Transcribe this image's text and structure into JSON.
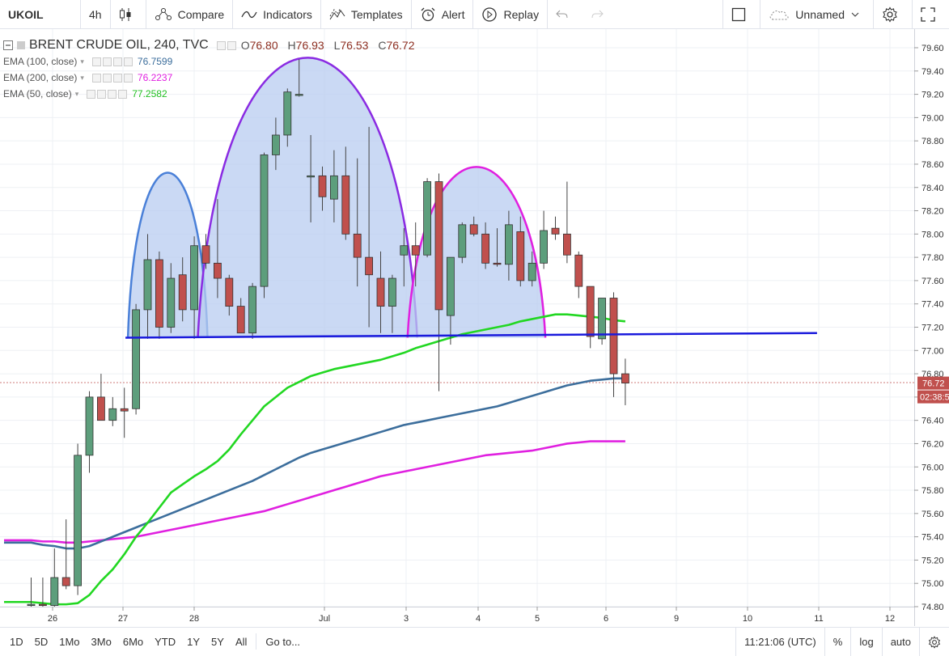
{
  "toolbar": {
    "symbol": "UKOIL",
    "interval": "4h",
    "compare": "Compare",
    "indicators": "Indicators",
    "templates": "Templates",
    "alert": "Alert",
    "replay": "Replay",
    "layout_name": "Unnamed"
  },
  "legend": {
    "title": "BRENT CRUDE OIL, 240, TVC",
    "ohlc": {
      "o_label": "O",
      "o": "76.80",
      "h_label": "H",
      "h": "76.93",
      "l_label": "L",
      "l": "76.53",
      "c_label": "C",
      "c": "76.72"
    },
    "ema100": {
      "label": "EMA (100, close)",
      "value": "76.7599",
      "color": "#3c6e9c"
    },
    "ema200": {
      "label": "EMA (200, close)",
      "value": "76.2237",
      "color": "#e020e0"
    },
    "ema50": {
      "label": "EMA (50, close)",
      "value": "77.2582",
      "color": "#22d722"
    }
  },
  "price_axis": {
    "ticks": [
      "79.60",
      "79.40",
      "79.20",
      "79.00",
      "78.80",
      "78.60",
      "78.40",
      "78.20",
      "78.00",
      "77.80",
      "77.60",
      "77.40",
      "77.20",
      "77.00",
      "76.80",
      "76.60",
      "76.40",
      "76.20",
      "76.00",
      "75.80",
      "75.60",
      "75.40",
      "75.20",
      "75.00",
      "74.80"
    ],
    "last_price": "76.72",
    "countdown": "02:38:5"
  },
  "time_axis": {
    "labels": [
      "26",
      "27",
      "28",
      "Jul",
      "3",
      "4",
      "5",
      "6",
      "9",
      "10",
      "11",
      "12"
    ]
  },
  "colors": {
    "up": "#5d9e7c",
    "down": "#c0504d",
    "neckline": "#1a1adc",
    "shape_fill": "#b8ccf0"
  },
  "chart_data": {
    "type": "candlestick",
    "symbol": "BRENT CRUDE OIL, 240, TVC",
    "ylim": [
      74.8,
      79.6
    ],
    "candles": [
      {
        "o": 74.82,
        "h": 75.05,
        "l": 74.8,
        "c": 74.82
      },
      {
        "o": 74.82,
        "h": 75.05,
        "l": 74.8,
        "c": 74.81
      },
      {
        "o": 74.81,
        "h": 75.3,
        "l": 74.8,
        "c": 75.05
      },
      {
        "o": 75.05,
        "h": 75.55,
        "l": 74.95,
        "c": 74.98
      },
      {
        "o": 74.98,
        "h": 76.2,
        "l": 74.9,
        "c": 76.1
      },
      {
        "o": 76.1,
        "h": 76.65,
        "l": 75.95,
        "c": 76.6
      },
      {
        "o": 76.6,
        "h": 76.8,
        "l": 76.4,
        "c": 76.4
      },
      {
        "o": 76.4,
        "h": 76.6,
        "l": 76.35,
        "c": 76.5
      },
      {
        "o": 76.5,
        "h": 76.68,
        "l": 76.25,
        "c": 76.48
      },
      {
        "o": 76.5,
        "h": 77.4,
        "l": 76.45,
        "c": 77.35
      },
      {
        "o": 77.35,
        "h": 78.0,
        "l": 77.1,
        "c": 77.78
      },
      {
        "o": 77.78,
        "h": 77.85,
        "l": 77.1,
        "c": 77.2
      },
      {
        "o": 77.2,
        "h": 77.75,
        "l": 77.15,
        "c": 77.62
      },
      {
        "o": 77.65,
        "h": 77.8,
        "l": 77.25,
        "c": 77.35
      },
      {
        "o": 77.35,
        "h": 77.98,
        "l": 77.1,
        "c": 77.9
      },
      {
        "o": 77.9,
        "h": 78.0,
        "l": 77.7,
        "c": 77.75
      },
      {
        "o": 77.75,
        "h": 78.3,
        "l": 77.45,
        "c": 77.62
      },
      {
        "o": 77.62,
        "h": 77.65,
        "l": 77.3,
        "c": 77.38
      },
      {
        "o": 77.38,
        "h": 77.45,
        "l": 77.15,
        "c": 77.15
      },
      {
        "o": 77.15,
        "h": 77.58,
        "l": 77.1,
        "c": 77.55
      },
      {
        "o": 77.55,
        "h": 78.7,
        "l": 77.45,
        "c": 78.68
      },
      {
        "o": 78.68,
        "h": 79.0,
        "l": 78.55,
        "c": 78.85
      },
      {
        "o": 78.85,
        "h": 79.25,
        "l": 78.75,
        "c": 79.22
      },
      {
        "o": 79.2,
        "h": 79.5,
        "l": 79.18,
        "c": 79.2
      },
      {
        "o": 78.5,
        "h": 78.85,
        "l": 78.1,
        "c": 78.5
      },
      {
        "o": 78.5,
        "h": 78.58,
        "l": 78.2,
        "c": 78.32
      },
      {
        "o": 78.3,
        "h": 78.72,
        "l": 78.1,
        "c": 78.5
      },
      {
        "o": 78.5,
        "h": 78.75,
        "l": 77.95,
        "c": 78.0
      },
      {
        "o": 78.0,
        "h": 78.65,
        "l": 77.55,
        "c": 77.8
      },
      {
        "o": 77.8,
        "h": 78.92,
        "l": 77.2,
        "c": 77.65
      },
      {
        "o": 77.62,
        "h": 77.85,
        "l": 77.15,
        "c": 77.38
      },
      {
        "o": 77.38,
        "h": 77.65,
        "l": 77.15,
        "c": 77.62
      },
      {
        "o": 77.82,
        "h": 78.05,
        "l": 77.55,
        "c": 77.9
      },
      {
        "o": 77.9,
        "h": 78.1,
        "l": 77.55,
        "c": 77.82
      },
      {
        "o": 77.82,
        "h": 78.48,
        "l": 77.8,
        "c": 78.45
      },
      {
        "o": 78.45,
        "h": 78.52,
        "l": 76.65,
        "c": 77.35
      },
      {
        "o": 77.3,
        "h": 77.8,
        "l": 77.05,
        "c": 77.8
      },
      {
        "o": 77.8,
        "h": 78.1,
        "l": 77.75,
        "c": 78.08
      },
      {
        "o": 78.08,
        "h": 78.15,
        "l": 77.98,
        "c": 78.0
      },
      {
        "o": 78.0,
        "h": 78.1,
        "l": 77.7,
        "c": 77.75
      },
      {
        "o": 77.75,
        "h": 78.05,
        "l": 77.72,
        "c": 77.74
      },
      {
        "o": 77.74,
        "h": 78.2,
        "l": 77.6,
        "c": 78.08
      },
      {
        "o": 78.02,
        "h": 78.15,
        "l": 77.55,
        "c": 77.6
      },
      {
        "o": 77.6,
        "h": 77.85,
        "l": 77.55,
        "c": 77.75
      },
      {
        "o": 77.75,
        "h": 78.2,
        "l": 77.7,
        "c": 78.03
      },
      {
        "o": 78.05,
        "h": 78.15,
        "l": 77.95,
        "c": 78.0
      },
      {
        "o": 78.0,
        "h": 78.45,
        "l": 77.75,
        "c": 77.82
      },
      {
        "o": 77.82,
        "h": 77.85,
        "l": 77.45,
        "c": 77.55
      },
      {
        "o": 77.55,
        "h": 77.55,
        "l": 77.02,
        "c": 77.12
      },
      {
        "o": 77.1,
        "h": 77.45,
        "l": 77.05,
        "c": 77.45
      },
      {
        "o": 77.45,
        "h": 77.5,
        "l": 76.6,
        "c": 76.8
      },
      {
        "o": 76.8,
        "h": 76.93,
        "l": 76.53,
        "c": 76.72
      }
    ],
    "ema50": [
      74.84,
      74.83,
      74.82,
      74.82,
      74.83,
      74.9,
      75.02,
      75.12,
      75.25,
      75.4,
      75.52,
      75.65,
      75.78,
      75.85,
      75.92,
      75.98,
      76.05,
      76.15,
      76.28,
      76.4,
      76.52,
      76.6,
      76.68,
      76.73,
      76.78,
      76.81,
      76.84,
      76.86,
      76.88,
      76.9,
      76.92,
      76.95,
      76.98,
      77.02,
      77.05,
      77.08,
      77.11,
      77.14,
      77.16,
      77.18,
      77.2,
      77.22,
      77.25,
      77.27,
      77.29,
      77.31,
      77.31,
      77.3,
      77.29,
      77.28,
      77.26,
      77.25
    ],
    "ema100": [
      75.35,
      75.33,
      75.32,
      75.3,
      75.3,
      75.32,
      75.36,
      75.4,
      75.44,
      75.48,
      75.52,
      75.56,
      75.6,
      75.64,
      75.68,
      75.72,
      75.76,
      75.8,
      75.84,
      75.88,
      75.93,
      75.98,
      76.03,
      76.08,
      76.12,
      76.15,
      76.18,
      76.21,
      76.24,
      76.27,
      76.3,
      76.33,
      76.36,
      76.38,
      76.4,
      76.42,
      76.44,
      76.46,
      76.48,
      76.5,
      76.52,
      76.55,
      76.58,
      76.61,
      76.64,
      76.67,
      76.7,
      76.72,
      76.74,
      76.75,
      76.76,
      76.76
    ],
    "ema200": [
      75.37,
      75.36,
      75.36,
      75.35,
      75.35,
      75.36,
      75.37,
      75.38,
      75.39,
      75.4,
      75.42,
      75.44,
      75.46,
      75.48,
      75.5,
      75.52,
      75.54,
      75.56,
      75.58,
      75.6,
      75.62,
      75.65,
      75.68,
      75.71,
      75.74,
      75.77,
      75.8,
      75.83,
      75.86,
      75.89,
      75.92,
      75.94,
      75.96,
      75.98,
      76.0,
      76.02,
      76.04,
      76.06,
      76.08,
      76.1,
      76.11,
      76.12,
      76.13,
      76.14,
      76.16,
      76.18,
      76.2,
      76.21,
      76.22,
      76.22,
      76.22,
      76.22
    ],
    "neckline": {
      "from": [
        9,
        77.11
      ],
      "to": [
        66,
        77.15
      ]
    },
    "shapes": [
      {
        "name": "left-shoulder",
        "start": 9,
        "end": 15,
        "peak": 78.53,
        "base": 77.11
      },
      {
        "name": "head",
        "start": 15,
        "end": 33,
        "peak": 79.52,
        "base": 77.11
      },
      {
        "name": "right-shoulder",
        "start": 33,
        "end": 44,
        "peak": 78.58,
        "base": 77.11
      }
    ]
  },
  "bottombar": {
    "ranges": [
      "1D",
      "5D",
      "1Mo",
      "3Mo",
      "6Mo",
      "YTD",
      "1Y",
      "5Y",
      "All"
    ],
    "goto": "Go to...",
    "clock": "11:21:06 (UTC)",
    "percent": "%",
    "log": "log",
    "auto": "auto"
  }
}
